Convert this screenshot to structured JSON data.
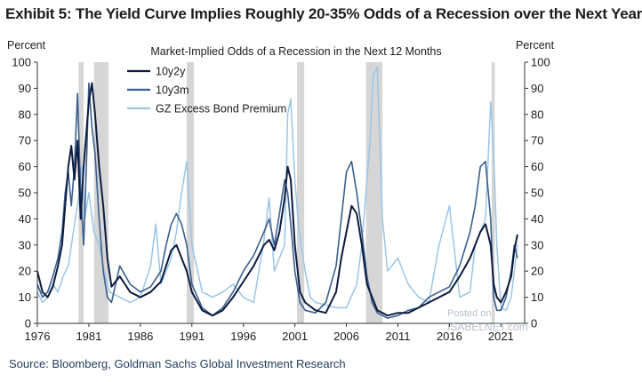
{
  "title": "Exhibit 5: The Yield Curve Implies Roughly 20-35% Odds of a Recession over the Next Year",
  "source": "Source: Bloomberg, Goldman Sachs Global Investment Research",
  "watermark": {
    "line1": "Posted on",
    "line2": "ISABELNET.com"
  },
  "colors": {
    "series_10y2y": "#0d1b3e",
    "series_10y3m": "#3a5f8f",
    "series_gz": "#9cc5e6",
    "recession": "#d6d6d6",
    "axis": "#333333"
  },
  "chart_data": {
    "type": "line",
    "title": "Market-Implied  Odds of a Recession in the Next 12 Months",
    "ylabel_left": "Percent",
    "ylabel_right": "Percent",
    "xlim": [
      1976,
      2023.3
    ],
    "ylim": [
      0,
      100
    ],
    "xticks": [
      1976,
      1981,
      1986,
      1991,
      1996,
      2001,
      2006,
      2011,
      2016,
      2021
    ],
    "yticks": [
      0,
      10,
      20,
      30,
      40,
      50,
      60,
      70,
      80,
      90,
      100
    ],
    "legend_position": "top-left",
    "recessions": [
      [
        1980.0,
        1980.5
      ],
      [
        1981.5,
        1982.9
      ],
      [
        1990.5,
        1991.2
      ],
      [
        2001.2,
        2001.9
      ],
      [
        2007.9,
        2009.5
      ],
      [
        2020.1,
        2020.4
      ]
    ],
    "series": [
      {
        "name": "10y2y",
        "x": [
          1976.0,
          1976.5,
          1977.0,
          1977.5,
          1978.0,
          1978.4,
          1978.7,
          1979.0,
          1979.3,
          1979.6,
          1979.9,
          1980.2,
          1980.5,
          1980.8,
          1981.0,
          1981.3,
          1981.6,
          1982.0,
          1982.4,
          1982.8,
          1983.2,
          1984.0,
          1985.0,
          1986.0,
          1987.0,
          1988.0,
          1988.5,
          1989.0,
          1989.5,
          1990.0,
          1990.5,
          1991.0,
          1992.0,
          1993.0,
          1994.0,
          1995.0,
          1996.0,
          1997.0,
          1998.0,
          1998.5,
          1999.0,
          1999.5,
          2000.0,
          2000.3,
          2000.6,
          2001.0,
          2001.5,
          2002.0,
          2003.0,
          2004.0,
          2005.0,
          2005.5,
          2006.0,
          2006.5,
          2007.0,
          2007.5,
          2008.0,
          2008.5,
          2009.0,
          2010.0,
          2011.0,
          2012.0,
          2013.0,
          2014.0,
          2015.0,
          2016.0,
          2017.0,
          2018.0,
          2018.5,
          2019.0,
          2019.5,
          2020.0,
          2020.3,
          2020.6,
          2021.0,
          2021.5,
          2022.0,
          2022.3,
          2022.6
        ],
        "values": [
          20,
          12,
          10,
          14,
          22,
          30,
          45,
          60,
          68,
          55,
          70,
          40,
          60,
          75,
          85,
          92,
          80,
          60,
          45,
          25,
          14,
          18,
          12,
          10,
          12,
          16,
          22,
          28,
          30,
          25,
          20,
          12,
          5,
          3,
          5,
          10,
          16,
          22,
          30,
          32,
          28,
          35,
          48,
          60,
          55,
          30,
          12,
          8,
          5,
          4,
          12,
          25,
          35,
          45,
          42,
          30,
          15,
          10,
          5,
          3,
          4,
          4,
          6,
          8,
          10,
          12,
          18,
          25,
          30,
          35,
          38,
          30,
          15,
          10,
          8,
          12,
          18,
          28,
          34
        ]
      },
      {
        "name": "10y3m",
        "x": [
          1976.0,
          1976.5,
          1977.0,
          1977.5,
          1978.0,
          1978.4,
          1978.7,
          1979.0,
          1979.3,
          1979.6,
          1979.9,
          1980.2,
          1980.5,
          1980.8,
          1981.0,
          1981.3,
          1981.6,
          1982.0,
          1982.4,
          1982.8,
          1983.2,
          1984.0,
          1985.0,
          1986.0,
          1987.0,
          1988.0,
          1988.5,
          1989.0,
          1989.5,
          1990.0,
          1990.5,
          1991.0,
          1992.0,
          1993.0,
          1994.0,
          1995.0,
          1996.0,
          1997.0,
          1998.0,
          1998.5,
          1999.0,
          1999.5,
          2000.0,
          2000.3,
          2000.6,
          2001.0,
          2001.5,
          2002.0,
          2003.0,
          2004.0,
          2005.0,
          2005.5,
          2006.0,
          2006.5,
          2007.0,
          2007.5,
          2008.0,
          2008.5,
          2009.0,
          2010.0,
          2011.0,
          2012.0,
          2013.0,
          2014.0,
          2015.0,
          2016.0,
          2017.0,
          2018.0,
          2018.5,
          2019.0,
          2019.5,
          2020.0,
          2020.3,
          2020.6,
          2021.0,
          2021.5,
          2022.0,
          2022.3,
          2022.6
        ],
        "values": [
          15,
          10,
          12,
          18,
          25,
          35,
          50,
          58,
          45,
          60,
          88,
          50,
          30,
          65,
          92,
          75,
          65,
          40,
          20,
          10,
          8,
          22,
          15,
          12,
          14,
          20,
          30,
          38,
          42,
          38,
          30,
          15,
          6,
          3,
          6,
          12,
          20,
          26,
          35,
          40,
          30,
          42,
          55,
          50,
          38,
          20,
          8,
          5,
          4,
          8,
          22,
          40,
          58,
          62,
          50,
          35,
          18,
          8,
          4,
          2,
          3,
          5,
          6,
          10,
          12,
          14,
          22,
          35,
          45,
          60,
          62,
          40,
          10,
          5,
          5,
          10,
          20,
          30,
          25
        ]
      },
      {
        "name": "GZ Excess Bond Premium",
        "x": [
          1976.0,
          1976.5,
          1977.0,
          1977.5,
          1978.0,
          1978.5,
          1979.0,
          1979.5,
          1980.0,
          1980.3,
          1980.6,
          1981.0,
          1981.5,
          1982.0,
          1982.5,
          1983.0,
          1984.0,
          1985.0,
          1986.0,
          1987.0,
          1987.5,
          1988.0,
          1989.0,
          1989.5,
          1990.0,
          1990.5,
          1991.0,
          1992.0,
          1993.0,
          1994.0,
          1995.0,
          1996.0,
          1997.0,
          1998.0,
          1998.5,
          1999.0,
          1999.5,
          2000.0,
          2000.3,
          2000.6,
          2001.0,
          2001.3,
          2001.6,
          2002.0,
          2002.5,
          2003.0,
          2004.0,
          2005.0,
          2006.0,
          2007.0,
          2007.5,
          2008.0,
          2008.3,
          2008.6,
          2009.0,
          2009.5,
          2010.0,
          2011.0,
          2012.0,
          2013.0,
          2014.0,
          2015.0,
          2016.0,
          2017.0,
          2018.0,
          2018.5,
          2019.0,
          2019.5,
          2020.0,
          2020.3,
          2020.6,
          2021.0,
          2021.5,
          2022.0,
          2022.6
        ],
        "values": [
          12,
          8,
          10,
          15,
          12,
          18,
          22,
          35,
          48,
          60,
          40,
          50,
          35,
          30,
          20,
          12,
          10,
          8,
          10,
          22,
          38,
          15,
          25,
          35,
          50,
          62,
          30,
          12,
          10,
          12,
          15,
          10,
          8,
          32,
          48,
          20,
          25,
          30,
          80,
          86,
          55,
          40,
          30,
          20,
          10,
          8,
          7,
          6,
          6,
          15,
          30,
          55,
          70,
          95,
          98,
          40,
          20,
          25,
          15,
          10,
          8,
          30,
          45,
          10,
          12,
          30,
          35,
          40,
          85,
          65,
          30,
          6,
          5,
          10,
          30
        ]
      }
    ]
  }
}
